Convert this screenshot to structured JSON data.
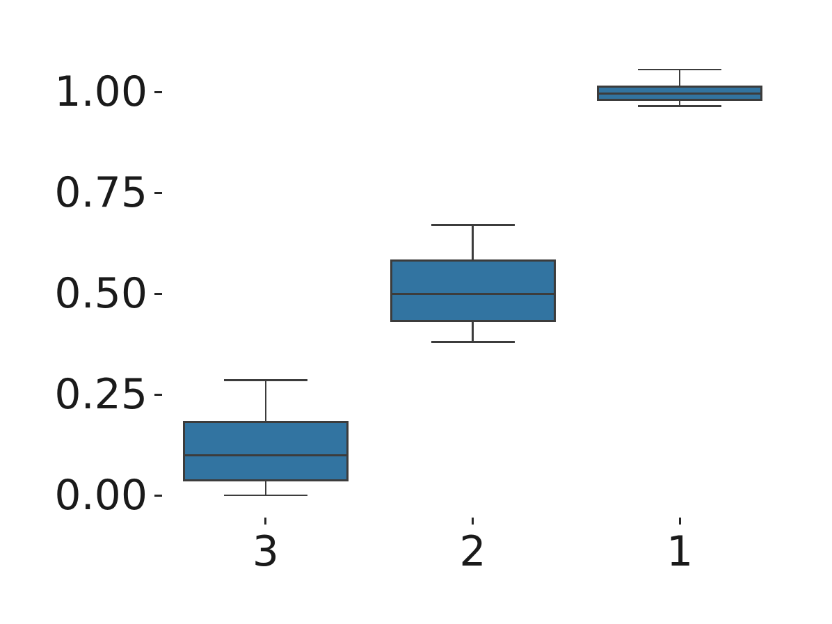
{
  "chart": {
    "background_color": "#ffffff",
    "box_fill_color": "#3274a1",
    "box_edge_color": "#3c3c3c",
    "tick_color": "#262626",
    "text_color": "#1a1a1a"
  },
  "chart_data": {
    "type": "boxplot",
    "title": "",
    "xlabel": "",
    "ylabel": "",
    "orientation": "vertical",
    "grid": false,
    "legend": null,
    "categories": [
      "3",
      "2",
      "1"
    ],
    "yticks": [
      0.0,
      0.25,
      0.5,
      0.75,
      1.0
    ],
    "ytick_labels": [
      "0.00",
      "0.25",
      "0.50",
      "0.75",
      "1.00"
    ],
    "ylim": [
      -0.08,
      1.13
    ],
    "series": [
      {
        "category": "3",
        "whisker_low": 0.0,
        "q1": 0.035,
        "median": 0.1,
        "q3": 0.185,
        "whisker_high": 0.285
      },
      {
        "category": "2",
        "whisker_low": 0.38,
        "q1": 0.43,
        "median": 0.5,
        "q3": 0.585,
        "whisker_high": 0.67
      },
      {
        "category": "1",
        "whisker_low": 0.965,
        "q1": 0.978,
        "median": 0.995,
        "q3": 1.015,
        "whisker_high": 1.055
      }
    ]
  }
}
